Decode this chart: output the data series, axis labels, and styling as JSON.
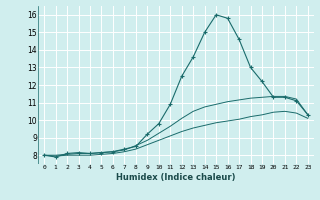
{
  "xlabel": "Humidex (Indice chaleur)",
  "bg_color": "#d0eeee",
  "grid_color": "#ffffff",
  "line_color": "#1a6b6b",
  "xlim": [
    -0.5,
    23.5
  ],
  "ylim": [
    7.5,
    16.5
  ],
  "xticks": [
    0,
    1,
    2,
    3,
    4,
    5,
    6,
    7,
    8,
    9,
    10,
    11,
    12,
    13,
    14,
    15,
    16,
    17,
    18,
    19,
    20,
    21,
    22,
    23
  ],
  "yticks": [
    8,
    9,
    10,
    11,
    12,
    13,
    14,
    15,
    16
  ],
  "series": [
    {
      "x": [
        0,
        1,
        2,
        3,
        4,
        5,
        6,
        7,
        8,
        9,
        10,
        11,
        12,
        13,
        14,
        15,
        16,
        17,
        18,
        19,
        20,
        21,
        22,
        23
      ],
      "y": [
        8.0,
        7.9,
        8.1,
        8.15,
        8.1,
        8.15,
        8.2,
        8.35,
        8.5,
        9.2,
        9.8,
        10.9,
        12.5,
        13.6,
        15.0,
        16.0,
        15.8,
        14.6,
        13.0,
        12.2,
        11.3,
        11.3,
        11.1,
        10.3
      ],
      "marker": "+"
    },
    {
      "x": [
        0,
        1,
        2,
        3,
        4,
        5,
        6,
        7,
        8,
        9,
        10,
        11,
        12,
        13,
        14,
        15,
        16,
        17,
        18,
        19,
        20,
        21,
        22,
        23
      ],
      "y": [
        8.0,
        8.0,
        8.05,
        8.1,
        8.1,
        8.15,
        8.2,
        8.3,
        8.55,
        8.85,
        9.25,
        9.65,
        10.1,
        10.5,
        10.75,
        10.9,
        11.05,
        11.15,
        11.25,
        11.3,
        11.35,
        11.35,
        11.2,
        10.3
      ],
      "marker": null
    },
    {
      "x": [
        0,
        1,
        2,
        3,
        4,
        5,
        6,
        7,
        8,
        9,
        10,
        11,
        12,
        13,
        14,
        15,
        16,
        17,
        18,
        19,
        20,
        21,
        22,
        23
      ],
      "y": [
        8.0,
        7.95,
        8.0,
        8.0,
        8.0,
        8.05,
        8.1,
        8.2,
        8.35,
        8.6,
        8.85,
        9.1,
        9.35,
        9.55,
        9.7,
        9.85,
        9.95,
        10.05,
        10.2,
        10.3,
        10.45,
        10.5,
        10.4,
        10.1
      ],
      "marker": null
    }
  ]
}
